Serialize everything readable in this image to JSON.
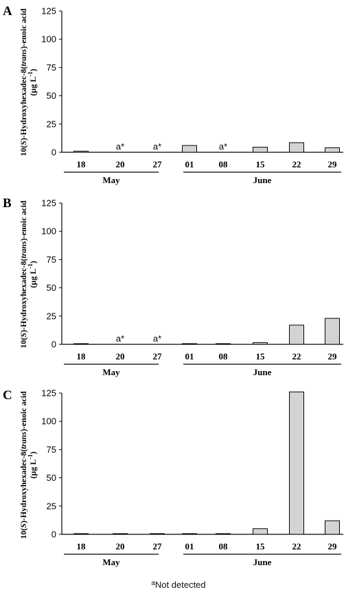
{
  "footnote": {
    "marker": "a",
    "text": "Not detected"
  },
  "chart_data": [
    {
      "type": "bar",
      "panel": "A",
      "categories": [
        "18",
        "20",
        "27",
        "01",
        "08",
        "15",
        "22",
        "29"
      ],
      "groups": [
        {
          "label": "May",
          "categories": [
            "18",
            "20",
            "27"
          ]
        },
        {
          "label": "June",
          "categories": [
            "01",
            "08",
            "15",
            "22",
            "29"
          ]
        }
      ],
      "values": [
        1,
        null,
        null,
        6,
        null,
        4.5,
        8.5,
        4
      ],
      "not_detected_label": "a*",
      "ylabel": "10(S)-Hydroxyhexadec-8(trans)-enoic acid (µg L-1)",
      "yticks": [
        0,
        25,
        50,
        75,
        100,
        125
      ],
      "ylim": [
        0,
        125
      ],
      "bar_color": "#d3d3d3"
    },
    {
      "type": "bar",
      "panel": "B",
      "categories": [
        "18",
        "20",
        "27",
        "01",
        "08",
        "15",
        "22",
        "29"
      ],
      "groups": [
        {
          "label": "May",
          "categories": [
            "18",
            "20",
            "27"
          ]
        },
        {
          "label": "June",
          "categories": [
            "01",
            "08",
            "15",
            "22",
            "29"
          ]
        }
      ],
      "values": [
        0.5,
        null,
        null,
        0.5,
        0.5,
        1.5,
        17,
        23
      ],
      "not_detected_label": "a*",
      "ylabel": "10(S)-Hydroxyhexadec-8(trans)-enoic acid (µg L-1)",
      "yticks": [
        0,
        25,
        50,
        75,
        100,
        125
      ],
      "ylim": [
        0,
        125
      ],
      "bar_color": "#d3d3d3"
    },
    {
      "type": "bar",
      "panel": "C",
      "categories": [
        "18",
        "20",
        "27",
        "01",
        "08",
        "15",
        "22",
        "29"
      ],
      "groups": [
        {
          "label": "May",
          "categories": [
            "18",
            "20",
            "27"
          ]
        },
        {
          "label": "June",
          "categories": [
            "01",
            "08",
            "15",
            "22",
            "29"
          ]
        }
      ],
      "values": [
        0.5,
        0.5,
        0.5,
        0.5,
        0.5,
        5,
        126,
        12
      ],
      "not_detected_label": "a*",
      "ylabel": "10(S)-Hydroxyhexadec-8(trans)-enoic acid (µg L-1)",
      "yticks": [
        0,
        25,
        50,
        75,
        100,
        125
      ],
      "ylim": [
        0,
        125
      ],
      "bar_color": "#d3d3d3"
    }
  ]
}
